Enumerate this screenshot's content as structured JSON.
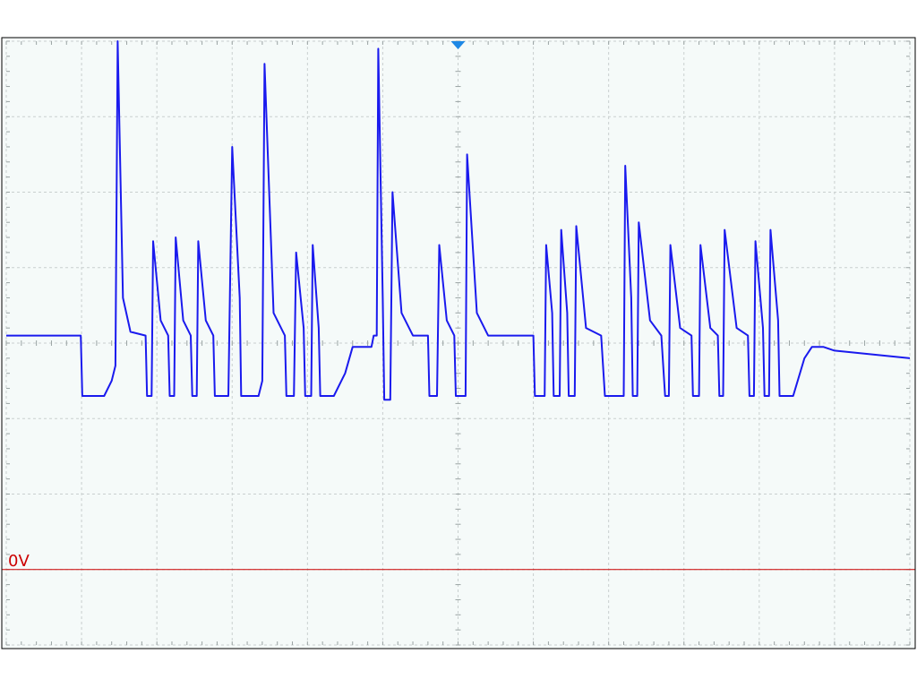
{
  "chart_data": {
    "type": "line",
    "title": "",
    "xlabel": "",
    "ylabel": "",
    "grid": true,
    "divisions": {
      "x": 12,
      "y": 8
    },
    "minor_ticks_per_division": 5,
    "xlim": [
      0,
      12
    ],
    "ylim": [
      -1,
      7
    ],
    "zero_marker": {
      "label": "0V",
      "level": 0,
      "color": "#cc0000"
    },
    "trigger_marker": {
      "position": 6,
      "color": "#1e88e5"
    },
    "colors": {
      "trace": "#1a1aee",
      "grid": "#c9cfcf",
      "background": "#f5faf9",
      "border": "#000000"
    },
    "series": [
      {
        "values": [
          [
            0.0,
            3.1
          ],
          [
            0.99,
            3.1
          ],
          [
            1.01,
            2.3
          ],
          [
            1.3,
            2.3
          ],
          [
            1.4,
            2.5
          ],
          [
            1.45,
            2.7
          ],
          [
            1.48,
            7.0
          ],
          [
            1.55,
            3.6
          ],
          [
            1.65,
            3.15
          ],
          [
            1.85,
            3.1
          ],
          [
            1.87,
            2.3
          ],
          [
            1.93,
            2.3
          ],
          [
            1.95,
            4.35
          ],
          [
            2.05,
            3.3
          ],
          [
            2.15,
            3.1
          ],
          [
            2.17,
            2.3
          ],
          [
            2.23,
            2.3
          ],
          [
            2.25,
            4.4
          ],
          [
            2.35,
            3.3
          ],
          [
            2.45,
            3.1
          ],
          [
            2.47,
            2.3
          ],
          [
            2.53,
            2.3
          ],
          [
            2.55,
            4.35
          ],
          [
            2.65,
            3.3
          ],
          [
            2.75,
            3.1
          ],
          [
            2.77,
            2.3
          ],
          [
            2.95,
            2.3
          ],
          [
            3.0,
            5.6
          ],
          [
            3.1,
            3.6
          ],
          [
            3.12,
            2.3
          ],
          [
            3.35,
            2.3
          ],
          [
            3.4,
            2.5
          ],
          [
            3.43,
            6.7
          ],
          [
            3.55,
            3.4
          ],
          [
            3.7,
            3.1
          ],
          [
            3.72,
            2.3
          ],
          [
            3.82,
            2.3
          ],
          [
            3.85,
            4.2
          ],
          [
            3.95,
            3.2
          ],
          [
            3.97,
            2.3
          ],
          [
            4.05,
            2.3
          ],
          [
            4.07,
            4.3
          ],
          [
            4.15,
            3.2
          ],
          [
            4.17,
            2.3
          ],
          [
            4.35,
            2.3
          ],
          [
            4.5,
            2.6
          ],
          [
            4.6,
            2.95
          ],
          [
            4.85,
            2.95
          ],
          [
            4.88,
            3.1
          ],
          [
            4.92,
            3.1
          ],
          [
            4.94,
            6.9
          ],
          [
            5.0,
            3.6
          ],
          [
            5.02,
            2.25
          ],
          [
            5.1,
            2.25
          ],
          [
            5.13,
            5.0
          ],
          [
            5.25,
            3.4
          ],
          [
            5.4,
            3.1
          ],
          [
            5.6,
            3.1
          ],
          [
            5.62,
            2.3
          ],
          [
            5.72,
            2.3
          ],
          [
            5.75,
            4.3
          ],
          [
            5.85,
            3.3
          ],
          [
            5.95,
            3.1
          ],
          [
            5.97,
            2.3
          ],
          [
            6.1,
            2.3
          ],
          [
            6.12,
            5.5
          ],
          [
            6.25,
            3.4
          ],
          [
            6.4,
            3.1
          ],
          [
            7.0,
            3.1
          ],
          [
            7.02,
            2.3
          ],
          [
            7.15,
            2.3
          ],
          [
            7.17,
            4.3
          ],
          [
            7.25,
            3.4
          ],
          [
            7.27,
            2.3
          ],
          [
            7.35,
            2.3
          ],
          [
            7.37,
            4.5
          ],
          [
            7.45,
            3.4
          ],
          [
            7.47,
            2.3
          ],
          [
            7.55,
            2.3
          ],
          [
            7.57,
            4.55
          ],
          [
            7.7,
            3.2
          ],
          [
            7.9,
            3.1
          ],
          [
            7.95,
            2.3
          ],
          [
            8.2,
            2.3
          ],
          [
            8.22,
            5.35
          ],
          [
            8.3,
            3.6
          ],
          [
            8.32,
            2.3
          ],
          [
            8.38,
            2.3
          ],
          [
            8.4,
            4.6
          ],
          [
            8.55,
            3.3
          ],
          [
            8.7,
            3.1
          ],
          [
            8.75,
            2.3
          ],
          [
            8.8,
            2.3
          ],
          [
            8.82,
            4.3
          ],
          [
            8.95,
            3.2
          ],
          [
            9.1,
            3.1
          ],
          [
            9.12,
            2.3
          ],
          [
            9.2,
            2.3
          ],
          [
            9.22,
            4.3
          ],
          [
            9.35,
            3.2
          ],
          [
            9.45,
            3.1
          ],
          [
            9.47,
            2.3
          ],
          [
            9.52,
            2.3
          ],
          [
            9.54,
            4.5
          ],
          [
            9.7,
            3.2
          ],
          [
            9.85,
            3.1
          ],
          [
            9.87,
            2.3
          ],
          [
            9.93,
            2.3
          ],
          [
            9.95,
            4.35
          ],
          [
            10.05,
            3.2
          ],
          [
            10.07,
            2.3
          ],
          [
            10.13,
            2.3
          ],
          [
            10.15,
            4.5
          ],
          [
            10.25,
            3.3
          ],
          [
            10.27,
            2.3
          ],
          [
            10.45,
            2.3
          ],
          [
            10.6,
            2.8
          ],
          [
            10.7,
            2.95
          ],
          [
            10.85,
            2.95
          ],
          [
            11.0,
            2.9
          ],
          [
            11.5,
            2.85
          ],
          [
            12.0,
            2.8
          ]
        ]
      }
    ]
  }
}
